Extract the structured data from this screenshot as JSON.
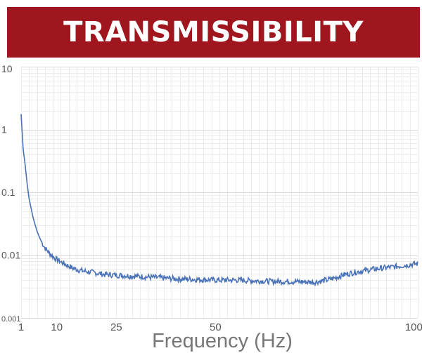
{
  "header": {
    "title": "TRANSMISSIBILITY"
  },
  "colors": {
    "banner": "#a0161f",
    "line": "#4a72b8",
    "grid": "#e6e6e6"
  },
  "chart_data": {
    "type": "line",
    "title": "TRANSMISSIBILITY",
    "xlabel": "Frequency (Hz)",
    "ylabel": "",
    "xlim": [
      1,
      101
    ],
    "ylim": [
      0.001,
      10
    ],
    "yscale": "log",
    "grid": true,
    "x_ticks": [
      "1",
      "10",
      "25",
      "50",
      "100"
    ],
    "y_ticks": [
      "10",
      "1",
      "0.1",
      "0.01",
      "0.001"
    ],
    "series": [
      {
        "x": [
          1,
          1.5,
          2,
          2.5,
          3,
          4,
          5,
          6,
          7,
          8,
          9,
          10,
          12,
          14,
          16,
          18,
          20,
          22,
          25,
          30,
          35,
          40,
          45,
          50,
          55,
          60,
          65,
          70,
          75,
          78,
          80,
          82,
          85,
          88,
          90,
          95,
          100,
          101
        ],
        "y": [
          1.75,
          0.5,
          0.28,
          0.14,
          0.08,
          0.04,
          0.024,
          0.017,
          0.013,
          0.011,
          0.0095,
          0.0085,
          0.0072,
          0.0062,
          0.0057,
          0.0054,
          0.0052,
          0.0049,
          0.0048,
          0.0046,
          0.0044,
          0.0042,
          0.0041,
          0.004,
          0.004,
          0.0039,
          0.0038,
          0.0038,
          0.0037,
          0.004,
          0.0043,
          0.0048,
          0.0053,
          0.0057,
          0.006,
          0.0065,
          0.0072,
          0.0073
        ]
      }
    ]
  }
}
